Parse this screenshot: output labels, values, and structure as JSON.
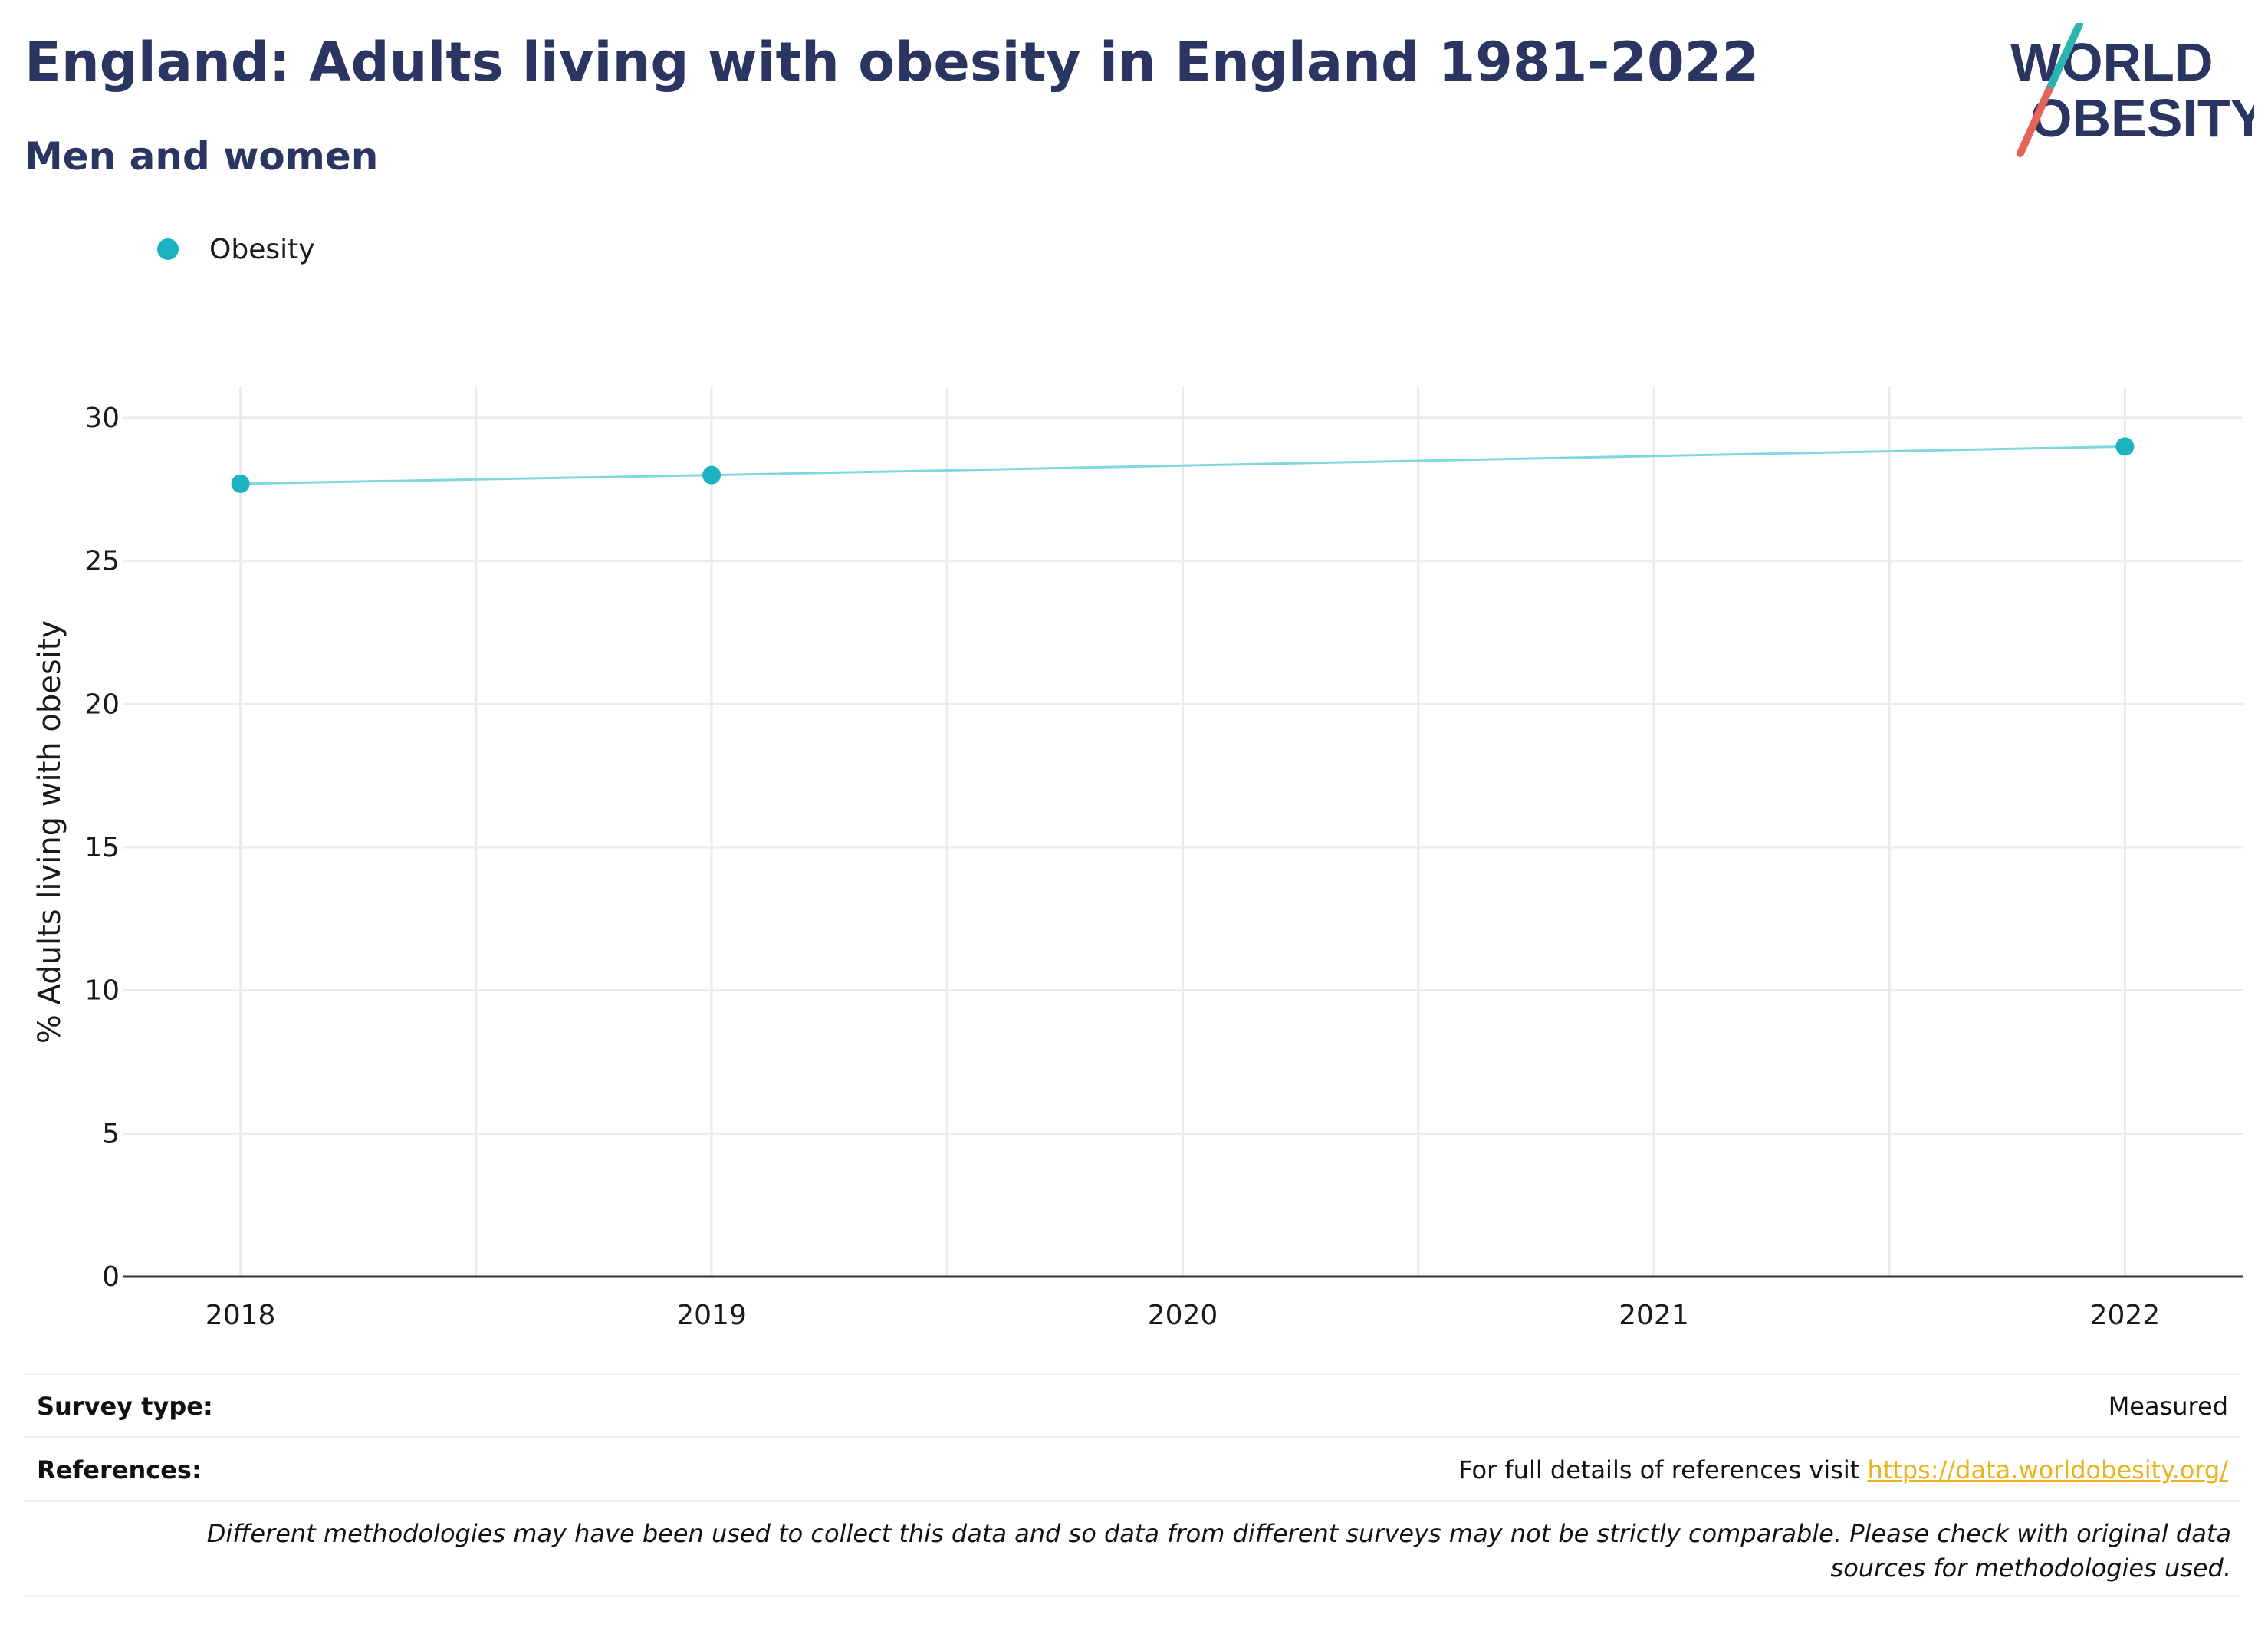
{
  "header": {
    "title": "England: Adults living with obesity in England 1981-2022",
    "subtitle": "Men and women",
    "logo_line1": "WORLD",
    "logo_line2": "OBESITY"
  },
  "legend": {
    "label": "Obesity",
    "icon": "circle-marker"
  },
  "chart_data": {
    "type": "line",
    "x": [
      2018,
      2019,
      2022
    ],
    "series": [
      {
        "name": "Obesity",
        "values": [
          27.7,
          28.0,
          29.0
        ]
      }
    ],
    "x_ticks": [
      "2018",
      "2019",
      "2020",
      "2021",
      "2022"
    ],
    "y_ticks": [
      "0",
      "5",
      "10",
      "15",
      "20",
      "25",
      "30"
    ],
    "ylabel": "% Adults living with obesity",
    "xlim": [
      2017.75,
      2022.25
    ],
    "ylim": [
      0,
      30
    ],
    "grid": true,
    "legend_position": "top-left",
    "colors": {
      "marker": "#1bb3c0",
      "line": "#7fd8df",
      "grid": "#ebebeb",
      "axis": "#333333"
    }
  },
  "info": {
    "survey_label": "Survey type:",
    "survey_value": "Measured",
    "references_label": "References:",
    "references_text": "For full details of references visit ",
    "references_link": "https://data.worldobesity.org/",
    "note": "Different methodologies may have been used to collect this data and so data from different surveys may not be strictly comparable. Please check with original data sources for methodologies used."
  },
  "colors": {
    "title": "#2b3562",
    "logo_teal": "#2bb5b0",
    "logo_red": "#e5645a",
    "link": "#e8b31b"
  }
}
